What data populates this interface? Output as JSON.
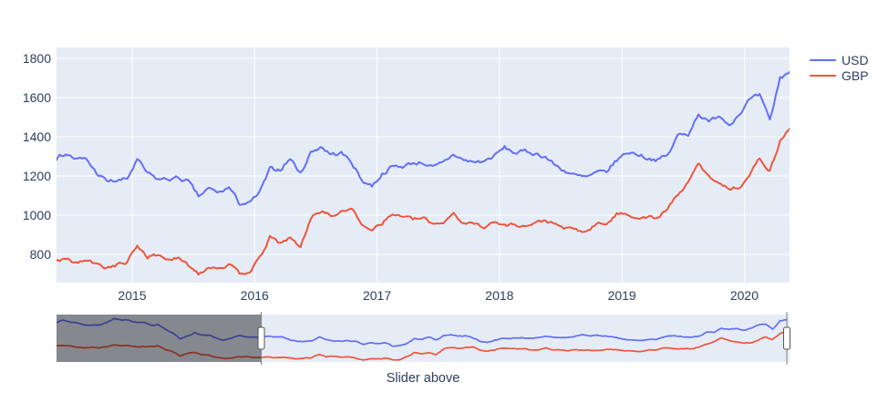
{
  "chart_data": {
    "type": "line",
    "title": "",
    "xlabel": "Slider above",
    "ylabel": "",
    "grid": true,
    "legend_position": "top-right-outside",
    "plot_bg_color": "#E5ECF6",
    "grid_color": "#FFFFFF",
    "tick_color": "#2a3f5f",
    "x_ticks": [
      2015,
      2016,
      2017,
      2018,
      2019,
      2020
    ],
    "y_ticks": [
      800,
      1000,
      1200,
      1400,
      1600,
      1800
    ],
    "x_range": [
      2014.382,
      2020.369
    ],
    "y_range": [
      656,
      1856
    ],
    "x_start": 2012.0417,
    "x_step_years": 0.0833333,
    "series": [
      {
        "name": "USD",
        "color": "#636EFA",
        "values": [
          1655,
          1720,
          1670,
          1650,
          1585,
          1600,
          1590,
          1650,
          1770,
          1720,
          1715,
          1665,
          1665,
          1580,
          1595,
          1470,
          1390,
          1230,
          1315,
          1395,
          1330,
          1325,
          1250,
          1205,
          1245,
          1325,
          1290,
          1290,
          1290,
          1315,
          1285,
          1285,
          1216,
          1173,
          1175,
          1184,
          1283,
          1213,
          1183,
          1184,
          1190,
          1171,
          1095,
          1135,
          1114,
          1142,
          1061,
          1060,
          1116,
          1234,
          1233,
          1290,
          1212,
          1320,
          1351,
          1309,
          1317,
          1272,
          1178,
          1150,
          1210,
          1248,
          1249,
          1266,
          1269,
          1242,
          1267,
          1311,
          1280,
          1271,
          1275,
          1303,
          1345,
          1318,
          1325,
          1315,
          1298,
          1253,
          1224,
          1201,
          1192,
          1215,
          1222,
          1281,
          1321,
          1313,
          1292,
          1283,
          1305,
          1409,
          1414,
          1520,
          1472,
          1513,
          1464,
          1517,
          1589,
          1610,
          1480,
          1700,
          1735
        ]
      },
      {
        "name": "GBP",
        "color": "#EF553B",
        "values": [
          1065,
          1085,
          1055,
          1025,
          1010,
          1030,
          1020,
          1040,
          1095,
          1070,
          1075,
          1030,
          1050,
          1040,
          1055,
          960,
          915,
          810,
          865,
          900,
          835,
          820,
          770,
          730,
          755,
          795,
          775,
          768,
          765,
          775,
          755,
          770,
          748,
          732,
          748,
          758,
          845,
          788,
          797,
          777,
          777,
          745,
          703,
          737,
          734,
          745,
          703,
          714,
          779,
          886,
          858,
          884,
          836,
          986,
          1024,
          996,
          1013,
          1042,
          945,
          932,
          963,
          1003,
          997,
          978,
          985,
          956,
          965,
          1013,
          955,
          958,
          943,
          964,
          948,
          955,
          943,
          958,
          975,
          950,
          932,
          925,
          914,
          953,
          958,
          1005,
          1008,
          986,
          991,
          984,
          1033,
          1110,
          1163,
          1265,
          1196,
          1171,
          1133,
          1146,
          1204,
          1290,
          1225,
          1380,
          1445
        ]
      }
    ],
    "rangeslider": {
      "full_x_range": [
        2012.05,
        2020.4
      ],
      "y_range": [
        650,
        1860
      ],
      "selected_x_range": [
        2014.382,
        2020.369
      ],
      "mask_color": "rgba(0,0,0,0.42)",
      "handle_color": "#FFFFFF",
      "handle_border_color": "#555555"
    }
  }
}
